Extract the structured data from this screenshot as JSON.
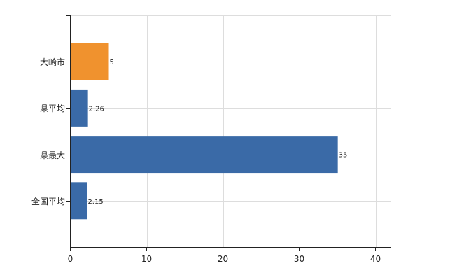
{
  "chart_data": {
    "type": "bar",
    "orientation": "horizontal",
    "categories": [
      "大崎市",
      "県平均",
      "県最大",
      "全国平均"
    ],
    "values": [
      5,
      2.26,
      35,
      2.15
    ],
    "value_labels": [
      "5",
      "2.26",
      "35",
      "2.15"
    ],
    "bar_colors": [
      "#f0922e",
      "#3a6aa7",
      "#3a6aa7",
      "#3a6aa7"
    ],
    "xlim": [
      0,
      42
    ],
    "xticks": [
      0,
      10,
      20,
      30,
      40
    ],
    "xtick_labels": [
      "0",
      "10",
      "20",
      "30",
      "40"
    ],
    "grid": true,
    "grid_color": "#dddddd",
    "axis_color": "#222222",
    "title": "",
    "xlabel": "",
    "ylabel": ""
  }
}
